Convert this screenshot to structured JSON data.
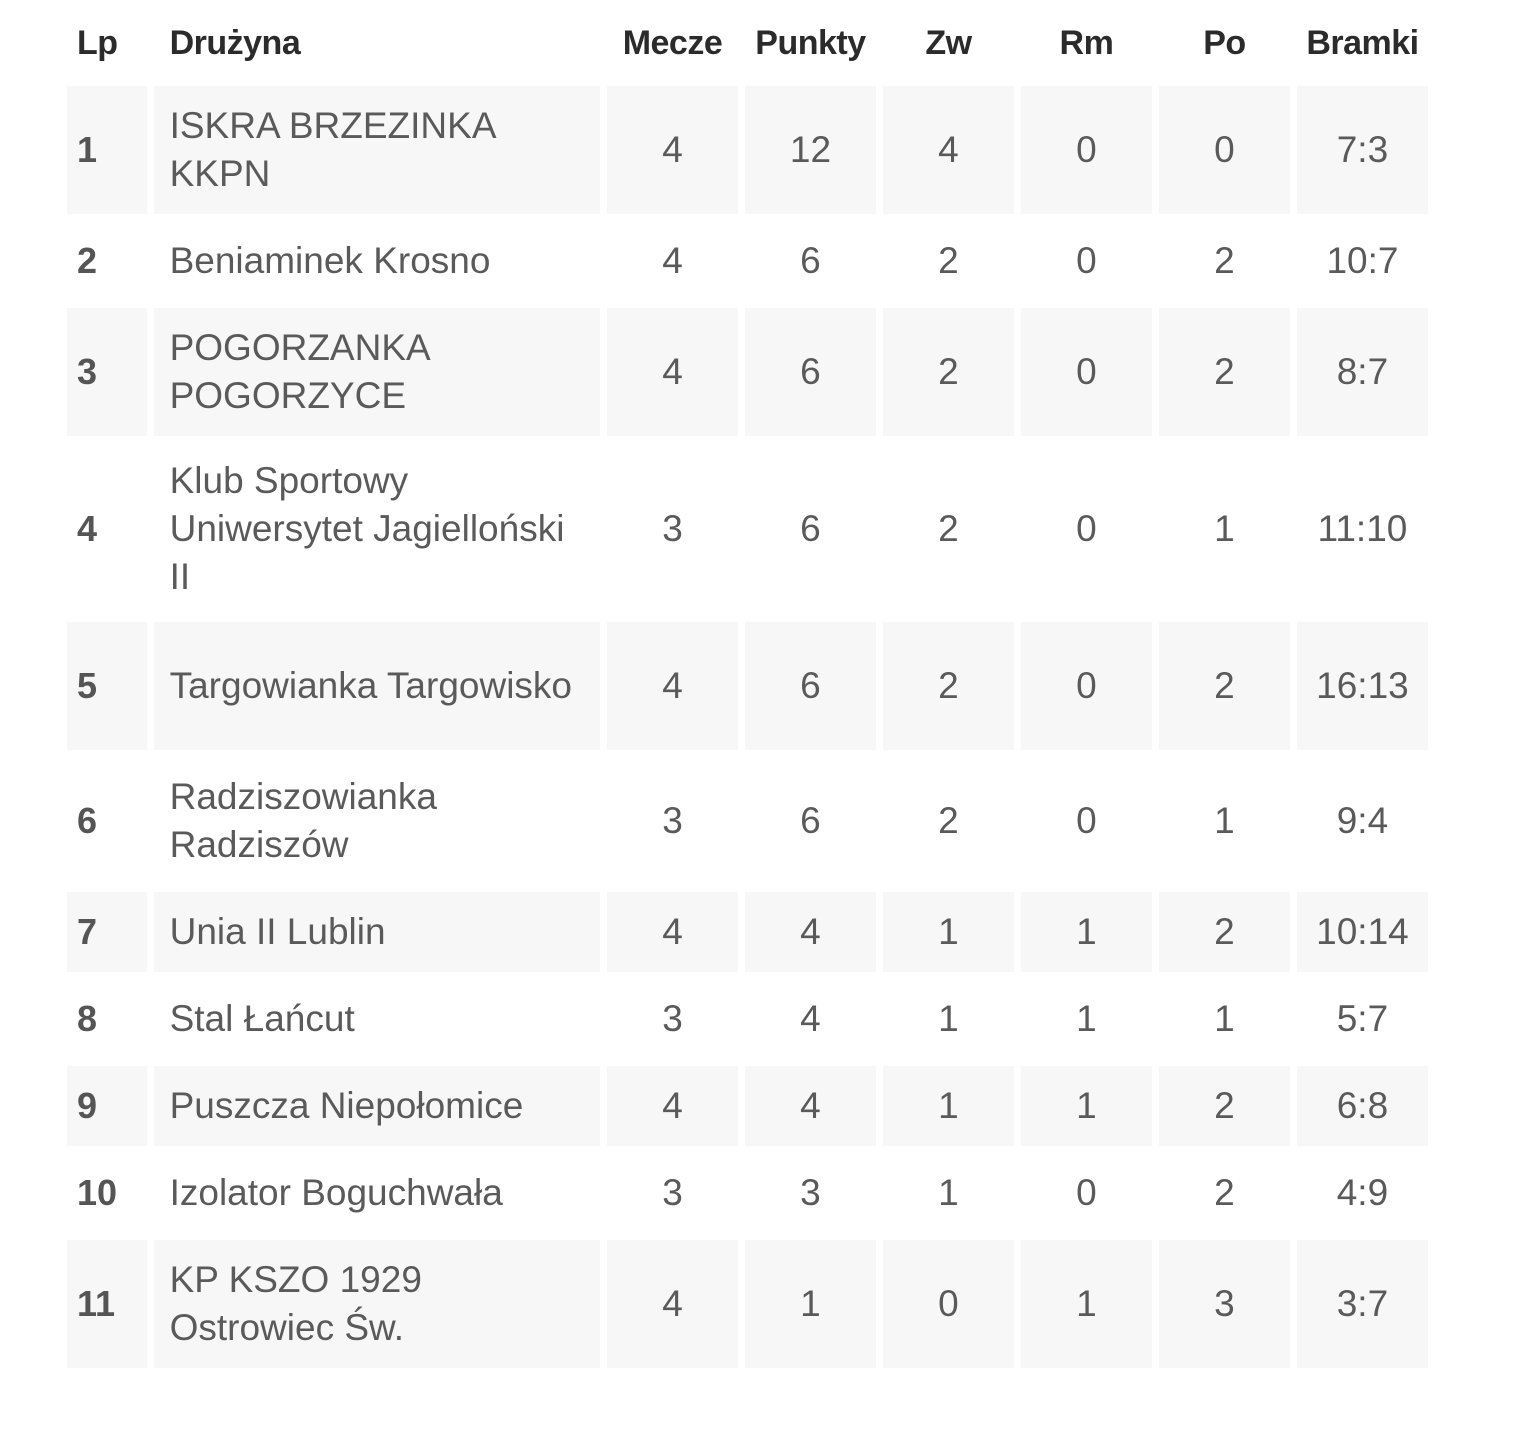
{
  "headers": {
    "lp": "Lp",
    "team": "Drużyna",
    "matches": "Mecze",
    "points": "Punkty",
    "wins": "Zw",
    "draws": "Rm",
    "losses": "Po",
    "goals": "Bramki"
  },
  "rows": [
    {
      "lp": "1",
      "team": "ISKRA BRZEZINKA KKPN",
      "matches": "4",
      "points": "12",
      "wins": "4",
      "draws": "0",
      "losses": "0",
      "goals": "7:3"
    },
    {
      "lp": "2",
      "team": "Beniaminek Krosno",
      "matches": "4",
      "points": "6",
      "wins": "2",
      "draws": "0",
      "losses": "2",
      "goals": "10:7"
    },
    {
      "lp": "3",
      "team": "POGORZANKA POGORZYCE",
      "matches": "4",
      "points": "6",
      "wins": "2",
      "draws": "0",
      "losses": "2",
      "goals": "8:7"
    },
    {
      "lp": "4",
      "team": "Klub Sportowy Uniwersytet Jagielloński II",
      "matches": "3",
      "points": "6",
      "wins": "2",
      "draws": "0",
      "losses": "1",
      "goals": "11:10"
    },
    {
      "lp": "5",
      "team": "Targowianka Targowisko",
      "matches": "4",
      "points": "6",
      "wins": "2",
      "draws": "0",
      "losses": "2",
      "goals": "16:13"
    },
    {
      "lp": "6",
      "team": "Radziszowianka Radziszów",
      "matches": "3",
      "points": "6",
      "wins": "2",
      "draws": "0",
      "losses": "1",
      "goals": "9:4"
    },
    {
      "lp": "7",
      "team": "Unia II Lublin",
      "matches": "4",
      "points": "4",
      "wins": "1",
      "draws": "1",
      "losses": "2",
      "goals": "10:14"
    },
    {
      "lp": "8",
      "team": "Stal Łańcut",
      "matches": "3",
      "points": "4",
      "wins": "1",
      "draws": "1",
      "losses": "1",
      "goals": "5:7"
    },
    {
      "lp": "9",
      "team": "Puszcza Niepołomice",
      "matches": "4",
      "points": "4",
      "wins": "1",
      "draws": "1",
      "losses": "2",
      "goals": "6:8"
    },
    {
      "lp": "10",
      "team": "Izolator Boguchwała",
      "matches": "3",
      "points": "3",
      "wins": "1",
      "draws": "0",
      "losses": "2",
      "goals": "4:9"
    },
    {
      "lp": "11",
      "team": "KP KSZO 1929 Ostrowiec Św.",
      "matches": "4",
      "points": "1",
      "wins": "0",
      "draws": "1",
      "losses": "3",
      "goals": "3:7"
    }
  ]
}
